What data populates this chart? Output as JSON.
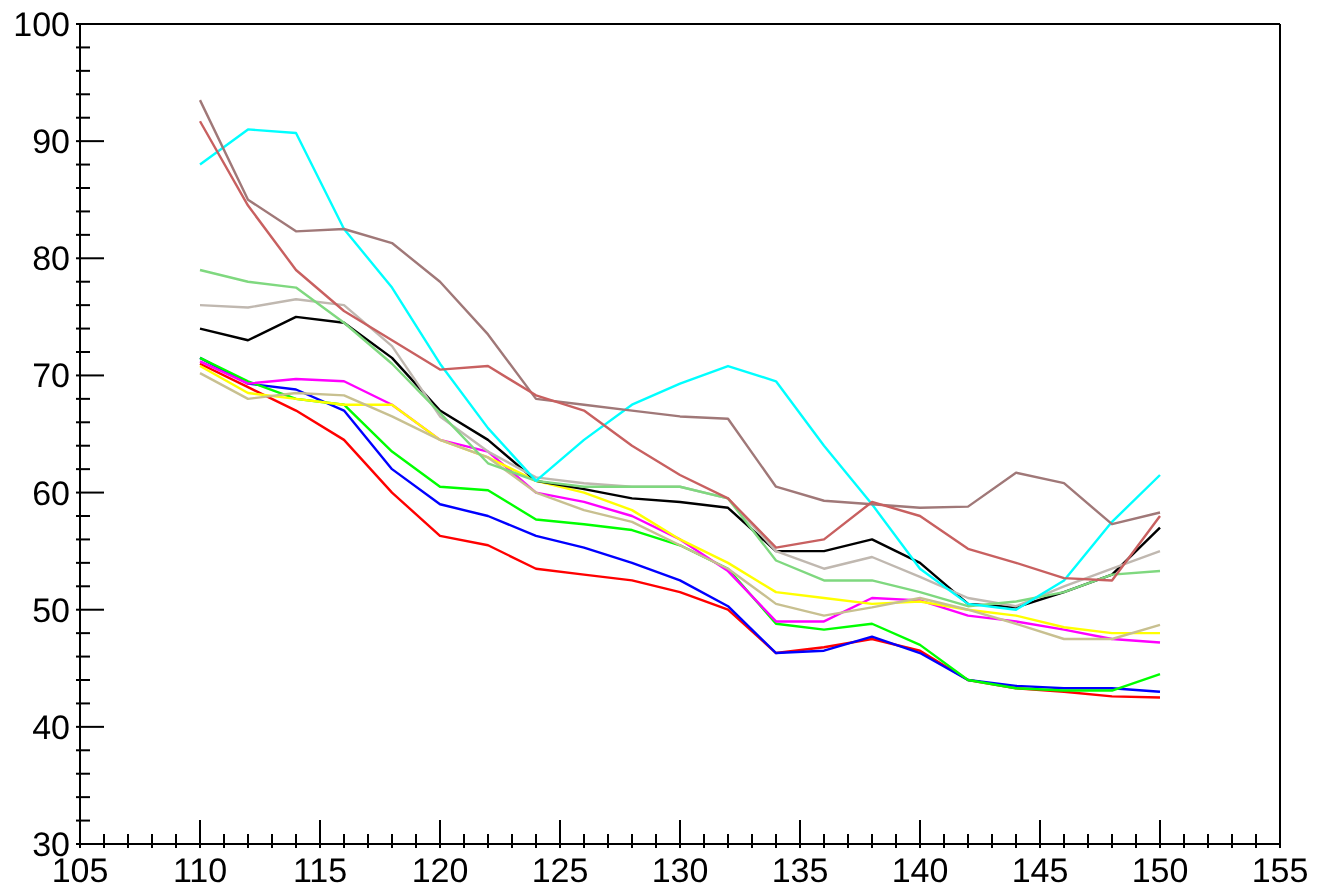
{
  "chart_data": {
    "type": "line",
    "x": [
      110,
      112,
      114,
      116,
      118,
      120,
      122,
      124,
      126,
      128,
      130,
      132,
      134,
      136,
      138,
      140,
      142,
      144,
      146,
      148,
      150
    ],
    "xlim": [
      105,
      155
    ],
    "xticks": [
      105,
      {
        "value": 106,
        "label": null
      },
      {
        "value": 107,
        "label": null
      },
      {
        "value": 108,
        "label": null
      },
      {
        "value": 109,
        "label": null
      },
      110,
      {
        "value": 111,
        "label": null
      },
      {
        "value": 112,
        "label": null
      },
      {
        "value": 113,
        "label": null
      },
      {
        "value": 114,
        "label": null
      },
      115,
      {
        "value": 116,
        "label": null
      },
      {
        "value": 117,
        "label": null
      },
      {
        "value": 118,
        "label": null
      },
      {
        "value": 119,
        "label": null
      },
      120,
      {
        "value": 121,
        "label": null
      },
      {
        "value": 122,
        "label": null
      },
      {
        "value": 123,
        "label": null
      },
      {
        "value": 124,
        "label": null
      },
      125,
      {
        "value": 126,
        "label": null
      },
      {
        "value": 127,
        "label": null
      },
      {
        "value": 128,
        "label": null
      },
      {
        "value": 129,
        "label": null
      },
      130,
      {
        "value": 131,
        "label": null
      },
      {
        "value": 132,
        "label": null
      },
      {
        "value": 133,
        "label": null
      },
      {
        "value": 134,
        "label": null
      },
      135,
      {
        "value": 136,
        "label": null
      },
      {
        "value": 137,
        "label": null
      },
      {
        "value": 138,
        "label": null
      },
      {
        "value": 139,
        "label": null
      },
      140,
      {
        "value": 141,
        "label": null
      },
      {
        "value": 142,
        "label": null
      },
      {
        "value": 143,
        "label": null
      },
      {
        "value": 144,
        "label": null
      },
      145,
      {
        "value": 146,
        "label": null
      },
      {
        "value": 147,
        "label": null
      },
      {
        "value": 148,
        "label": null
      },
      {
        "value": 149,
        "label": null
      },
      150,
      {
        "value": 151,
        "label": null
      },
      {
        "value": 152,
        "label": null
      },
      {
        "value": 153,
        "label": null
      },
      {
        "value": 154,
        "label": null
      },
      155
    ],
    "ylim": [
      30,
      100
    ],
    "yticks": [
      30,
      {
        "value": 32,
        "label": null
      },
      {
        "value": 34,
        "label": null
      },
      {
        "value": 36,
        "label": null
      },
      {
        "value": 38,
        "label": null
      },
      40,
      {
        "value": 42,
        "label": null
      },
      {
        "value": 44,
        "label": null
      },
      {
        "value": 46,
        "label": null
      },
      {
        "value": 48,
        "label": null
      },
      50,
      {
        "value": 52,
        "label": null
      },
      {
        "value": 54,
        "label": null
      },
      {
        "value": 56,
        "label": null
      },
      {
        "value": 58,
        "label": null
      },
      60,
      {
        "value": 62,
        "label": null
      },
      {
        "value": 64,
        "label": null
      },
      {
        "value": 66,
        "label": null
      },
      {
        "value": 68,
        "label": null
      },
      70,
      {
        "value": 72,
        "label": null
      },
      {
        "value": 74,
        "label": null
      },
      {
        "value": 76,
        "label": null
      },
      {
        "value": 78,
        "label": null
      },
      80,
      {
        "value": 82,
        "label": null
      },
      {
        "value": 84,
        "label": null
      },
      {
        "value": 86,
        "label": null
      },
      {
        "value": 88,
        "label": null
      },
      90,
      {
        "value": 92,
        "label": null
      },
      {
        "value": 94,
        "label": null
      },
      {
        "value": 96,
        "label": null
      },
      {
        "value": 98,
        "label": null
      },
      100
    ],
    "grid": false,
    "series": [
      {
        "color": "#ff0000",
        "values": [
          71,
          69,
          67,
          64.5,
          60,
          56.3,
          55.5,
          53.5,
          53,
          52.5,
          51.5,
          50,
          46.3,
          46.8,
          47.5,
          46.5,
          44,
          43.3,
          43,
          42.6,
          42.5
        ]
      },
      {
        "color": "#0000ff",
        "values": [
          71.5,
          69.3,
          68.8,
          67,
          62,
          59,
          58,
          56.3,
          55.3,
          54,
          52.5,
          50.3,
          46.3,
          46.5,
          47.7,
          46.3,
          44,
          43.5,
          43.3,
          43.3,
          43
        ]
      },
      {
        "color": "#00ff00",
        "values": [
          71.5,
          69.5,
          68,
          67.5,
          63.5,
          60.5,
          60.2,
          57.7,
          57.3,
          56.8,
          55.5,
          53.5,
          48.8,
          48.3,
          48.8,
          47,
          44,
          43.3,
          43.1,
          43.1,
          44.5
        ]
      },
      {
        "color": "#ff00ff",
        "values": [
          71.2,
          69.3,
          69.7,
          69.5,
          67.5,
          64.5,
          63.5,
          60,
          59.2,
          58,
          56,
          53.3,
          49,
          49,
          51,
          50.8,
          49.5,
          49,
          48.3,
          47.5,
          47.2
        ]
      },
      {
        "color": "#ffff00",
        "values": [
          70.8,
          68.5,
          68,
          67.5,
          67.5,
          64.5,
          63,
          61,
          60,
          58.5,
          56,
          54,
          51.5,
          51,
          50.5,
          50.7,
          50,
          49.5,
          48.5,
          48,
          48
        ]
      },
      {
        "color": "#c8c090",
        "values": [
          70.2,
          68,
          68.5,
          68.3,
          66.5,
          64.5,
          63,
          60,
          58.5,
          57.5,
          55.5,
          53.5,
          50.5,
          49.5,
          50.2,
          51,
          50,
          48.8,
          47.5,
          47.5,
          48.7
        ]
      },
      {
        "color": "#000000",
        "values": [
          74,
          73,
          75,
          74.5,
          71.5,
          67,
          64.5,
          61,
          60.3,
          59.5,
          59.2,
          58.7,
          55,
          55,
          56,
          54,
          50.5,
          50.2,
          51.5,
          53,
          57
        ]
      },
      {
        "color": "#c0b8b0",
        "values": [
          76,
          75.8,
          76.5,
          76,
          72.5,
          66.5,
          63.5,
          61.3,
          60.8,
          60.5,
          60.5,
          59.5,
          55,
          53.5,
          54.5,
          52.8,
          51,
          50.3,
          52,
          53.5,
          55
        ]
      },
      {
        "color": "#7fd87f",
        "values": [
          79,
          78,
          77.5,
          74.5,
          71,
          66.8,
          62.5,
          61,
          60.5,
          60.5,
          60.5,
          59.5,
          54.2,
          52.5,
          52.5,
          51.5,
          50.3,
          50.7,
          51.5,
          53,
          53.3
        ]
      },
      {
        "color": "#00ffff",
        "values": [
          88,
          91,
          90.7,
          82.5,
          77.5,
          71,
          65.5,
          61,
          64.5,
          67.5,
          69.3,
          70.8,
          69.5,
          64,
          59,
          53.5,
          50.5,
          50,
          52.5,
          57.5,
          61.5
        ]
      },
      {
        "color": "#a07878",
        "values": [
          93.5,
          85,
          82.3,
          82.5,
          81.3,
          78,
          73.5,
          68,
          67.5,
          67,
          66.5,
          66.3,
          60.5,
          59.3,
          59,
          58.7,
          58.8,
          61.7,
          60.8,
          57.3,
          58.3
        ]
      },
      {
        "color": "#c86060",
        "values": [
          91.7,
          84.5,
          79,
          75.5,
          73,
          70.5,
          70.8,
          68.3,
          67,
          64,
          61.5,
          59.5,
          55.3,
          56,
          59.2,
          58,
          55.2,
          54,
          52.7,
          52.5,
          58
        ]
      }
    ]
  }
}
